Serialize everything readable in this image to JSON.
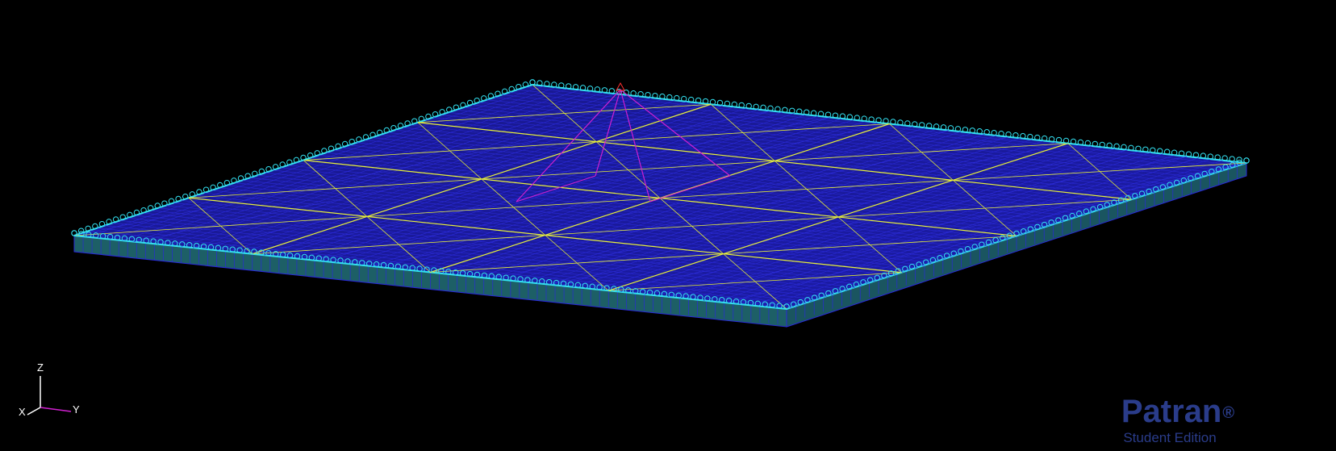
{
  "app": {
    "name": "Patran"
  },
  "viewport": {
    "background": "#000000",
    "model": {
      "description_colors": {
        "mesh": "#1a1aa6",
        "mesh_edges": "#2a2ad8",
        "boundary_constraints": "#33e0f0",
        "geometry_lines": "#e8f03a",
        "load_lines": "#d020d0",
        "side_faces": "#1f6a6a"
      },
      "icons": [
        "constraint-marker-icon",
        "load-arrow-icon"
      ]
    }
  },
  "triad": {
    "z_label": "Z",
    "y_label": "Y",
    "x_label": "X",
    "colors": {
      "z": "#ffffff",
      "y": "#d020d0",
      "x": "#ffffff"
    }
  },
  "logo": {
    "word": "Patran",
    "registered": "®",
    "edition": "Student Edition",
    "color": "#2a3c8a"
  }
}
